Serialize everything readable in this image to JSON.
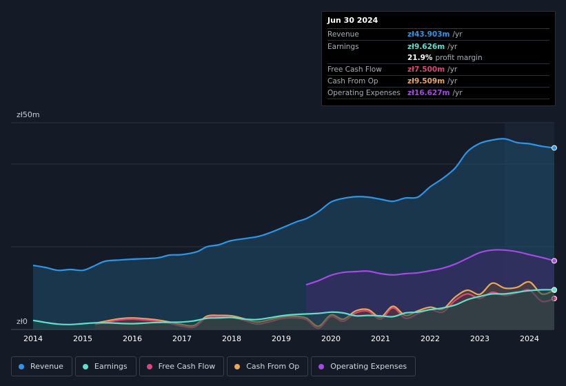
{
  "chart_data": {
    "type": "area",
    "y_max_label": "zł50m",
    "y_zero_label": "zł0",
    "ylim": [
      0,
      50
    ],
    "xlim": [
      2014,
      2024.5
    ],
    "x_ticks": [
      "2014",
      "2015",
      "2016",
      "2017",
      "2018",
      "2019",
      "2020",
      "2021",
      "2022",
      "2023",
      "2024"
    ],
    "highlight_from": 2023.5,
    "series": [
      {
        "name": "Revenue",
        "color": "#2e96e6",
        "fill": "#1e4c6c",
        "points": [
          [
            2014,
            15.5
          ],
          [
            2014.25,
            15
          ],
          [
            2014.5,
            14.3
          ],
          [
            2014.75,
            14.5
          ],
          [
            2015,
            14.3
          ],
          [
            2015.2,
            15.2
          ],
          [
            2015.45,
            16.5
          ],
          [
            2015.75,
            16.8
          ],
          [
            2016,
            17.0
          ],
          [
            2016.5,
            17.3
          ],
          [
            2016.75,
            18.0
          ],
          [
            2017,
            18.1
          ],
          [
            2017.3,
            18.8
          ],
          [
            2017.5,
            20.0
          ],
          [
            2017.75,
            20.5
          ],
          [
            2018,
            21.5
          ],
          [
            2018.5,
            22.4
          ],
          [
            2018.75,
            23.3
          ],
          [
            2019,
            24.5
          ],
          [
            2019.3,
            26.0
          ],
          [
            2019.5,
            26.8
          ],
          [
            2019.75,
            28.5
          ],
          [
            2020,
            30.8
          ],
          [
            2020.25,
            31.7
          ],
          [
            2020.5,
            32.1
          ],
          [
            2020.75,
            32.0
          ],
          [
            2021,
            31.5
          ],
          [
            2021.25,
            31.0
          ],
          [
            2021.5,
            31.8
          ],
          [
            2021.75,
            32.0
          ],
          [
            2022,
            34.5
          ],
          [
            2022.25,
            36.5
          ],
          [
            2022.5,
            39.0
          ],
          [
            2022.75,
            43.0
          ],
          [
            2023,
            45.0
          ],
          [
            2023.25,
            45.8
          ],
          [
            2023.5,
            46.1
          ],
          [
            2023.75,
            45.2
          ],
          [
            2024,
            44.9
          ],
          [
            2024.25,
            44.3
          ],
          [
            2024.5,
            43.9
          ]
        ]
      },
      {
        "name": "Operating Expenses",
        "color": "#a649e6",
        "fill": "#3f2a6a",
        "points": [
          [
            2019.5,
            10.8
          ],
          [
            2019.75,
            11.8
          ],
          [
            2020,
            13.1
          ],
          [
            2020.25,
            13.8
          ],
          [
            2020.5,
            14.0
          ],
          [
            2020.75,
            14.1
          ],
          [
            2021,
            13.5
          ],
          [
            2021.25,
            13.2
          ],
          [
            2021.5,
            13.5
          ],
          [
            2021.75,
            13.7
          ],
          [
            2022,
            14.2
          ],
          [
            2022.25,
            14.8
          ],
          [
            2022.5,
            15.8
          ],
          [
            2022.75,
            17.2
          ],
          [
            2023,
            18.6
          ],
          [
            2023.25,
            19.2
          ],
          [
            2023.5,
            19.2
          ],
          [
            2023.75,
            18.8
          ],
          [
            2024,
            18.1
          ],
          [
            2024.25,
            17.4
          ],
          [
            2024.5,
            16.6
          ]
        ]
      },
      {
        "name": "Cash From Op",
        "color": "#e8a85a",
        "fill": "#5a4530",
        "points": [
          [
            2015.25,
            1.5
          ],
          [
            2015.5,
            2.1
          ],
          [
            2015.75,
            2.6
          ],
          [
            2016,
            2.8
          ],
          [
            2016.25,
            2.6
          ],
          [
            2016.5,
            2.3
          ],
          [
            2016.75,
            1.8
          ],
          [
            2017,
            1.2
          ],
          [
            2017.25,
            1.0
          ],
          [
            2017.5,
            3.2
          ],
          [
            2017.75,
            3.4
          ],
          [
            2018,
            3.3
          ],
          [
            2018.25,
            2.6
          ],
          [
            2018.5,
            1.8
          ],
          [
            2018.75,
            2.3
          ],
          [
            2019,
            3.0
          ],
          [
            2019.25,
            3.2
          ],
          [
            2019.5,
            2.8
          ],
          [
            2019.75,
            0.8
          ],
          [
            2020,
            3.5
          ],
          [
            2020.25,
            2.5
          ],
          [
            2020.5,
            4.5
          ],
          [
            2020.75,
            4.8
          ],
          [
            2021,
            3.0
          ],
          [
            2021.25,
            5.6
          ],
          [
            2021.5,
            3.4
          ],
          [
            2021.75,
            4.5
          ],
          [
            2022,
            5.4
          ],
          [
            2022.25,
            4.9
          ],
          [
            2022.5,
            7.8
          ],
          [
            2022.75,
            9.5
          ],
          [
            2023,
            8.5
          ],
          [
            2023.25,
            11.2
          ],
          [
            2023.5,
            10.0
          ],
          [
            2023.75,
            10.2
          ],
          [
            2024,
            11.5
          ],
          [
            2024.25,
            8.6
          ],
          [
            2024.5,
            9.5
          ]
        ]
      },
      {
        "name": "Free Cash Flow",
        "color": "#d9487a",
        "fill": "#5a2a40",
        "points": [
          [
            2015.25,
            1.2
          ],
          [
            2015.5,
            1.8
          ],
          [
            2015.75,
            2.3
          ],
          [
            2016,
            2.5
          ],
          [
            2016.25,
            2.3
          ],
          [
            2016.5,
            2.0
          ],
          [
            2016.75,
            1.5
          ],
          [
            2017,
            0.8
          ],
          [
            2017.25,
            0.6
          ],
          [
            2017.5,
            2.9
          ],
          [
            2017.75,
            3.1
          ],
          [
            2018,
            3.0
          ],
          [
            2018.25,
            2.2
          ],
          [
            2018.5,
            1.3
          ],
          [
            2018.75,
            1.8
          ],
          [
            2019,
            2.6
          ],
          [
            2019.25,
            2.8
          ],
          [
            2019.5,
            2.4
          ],
          [
            2019.75,
            0.3
          ],
          [
            2020,
            3.1
          ],
          [
            2020.25,
            2.0
          ],
          [
            2020.5,
            4.0
          ],
          [
            2020.75,
            4.4
          ],
          [
            2021,
            2.5
          ],
          [
            2021.25,
            5.2
          ],
          [
            2021.5,
            2.7
          ],
          [
            2021.75,
            3.8
          ],
          [
            2022,
            4.8
          ],
          [
            2022.25,
            4.2
          ],
          [
            2022.5,
            7.0
          ],
          [
            2022.75,
            8.6
          ],
          [
            2023,
            7.5
          ],
          [
            2023.25,
            9.0
          ],
          [
            2023.5,
            8.2
          ],
          [
            2023.75,
            8.8
          ],
          [
            2024,
            9.5
          ],
          [
            2024.25,
            6.8
          ],
          [
            2024.5,
            7.5
          ]
        ]
      },
      {
        "name": "Earnings",
        "color": "#5ee0cc",
        "fill": "#1d4a48",
        "points": [
          [
            2014,
            2.2
          ],
          [
            2014.25,
            1.7
          ],
          [
            2014.5,
            1.3
          ],
          [
            2014.75,
            1.2
          ],
          [
            2015,
            1.4
          ],
          [
            2015.25,
            1.6
          ],
          [
            2015.5,
            1.6
          ],
          [
            2016,
            1.4
          ],
          [
            2016.5,
            1.7
          ],
          [
            2017,
            1.8
          ],
          [
            2017.25,
            2.1
          ],
          [
            2017.5,
            2.7
          ],
          [
            2017.75,
            2.8
          ],
          [
            2018,
            2.9
          ],
          [
            2018.25,
            2.5
          ],
          [
            2018.5,
            2.4
          ],
          [
            2018.75,
            2.8
          ],
          [
            2019,
            3.3
          ],
          [
            2019.25,
            3.6
          ],
          [
            2019.75,
            3.9
          ],
          [
            2020,
            4.2
          ],
          [
            2020.25,
            4.0
          ],
          [
            2020.5,
            3.3
          ],
          [
            2020.75,
            3.4
          ],
          [
            2021,
            3.3
          ],
          [
            2021.25,
            3.1
          ],
          [
            2021.5,
            4.0
          ],
          [
            2021.75,
            4.2
          ],
          [
            2022,
            4.8
          ],
          [
            2022.25,
            5.2
          ],
          [
            2022.5,
            5.9
          ],
          [
            2022.75,
            7.2
          ],
          [
            2023,
            8.0
          ],
          [
            2023.25,
            8.6
          ],
          [
            2023.5,
            8.6
          ],
          [
            2023.75,
            9.0
          ],
          [
            2024,
            9.4
          ],
          [
            2024.25,
            9.6
          ],
          [
            2024.5,
            9.6
          ]
        ]
      }
    ]
  },
  "tooltip": {
    "date": "Jun 30 2024",
    "rows": [
      {
        "label": "Revenue",
        "value": "zł43.903m",
        "unit": "/yr",
        "color": "#2e96e6"
      },
      {
        "label": "Earnings",
        "value": "zł9.626m",
        "unit": "/yr",
        "color": "#5ee0cc"
      },
      {
        "label": "",
        "value": "21.9%",
        "unit": "profit margin",
        "color": "#ffffff"
      },
      {
        "label": "Free Cash Flow",
        "value": "zł7.500m",
        "unit": "/yr",
        "color": "#d9487a"
      },
      {
        "label": "Cash From Op",
        "value": "zł9.509m",
        "unit": "/yr",
        "color": "#e8a85a"
      },
      {
        "label": "Operating Expenses",
        "value": "zł16.627m",
        "unit": "/yr",
        "color": "#a649e6"
      }
    ]
  },
  "legend": [
    {
      "label": "Revenue",
      "color": "#2e96e6"
    },
    {
      "label": "Earnings",
      "color": "#5ee0cc"
    },
    {
      "label": "Free Cash Flow",
      "color": "#d9487a"
    },
    {
      "label": "Cash From Op",
      "color": "#e8a85a"
    },
    {
      "label": "Operating Expenses",
      "color": "#a649e6"
    }
  ]
}
